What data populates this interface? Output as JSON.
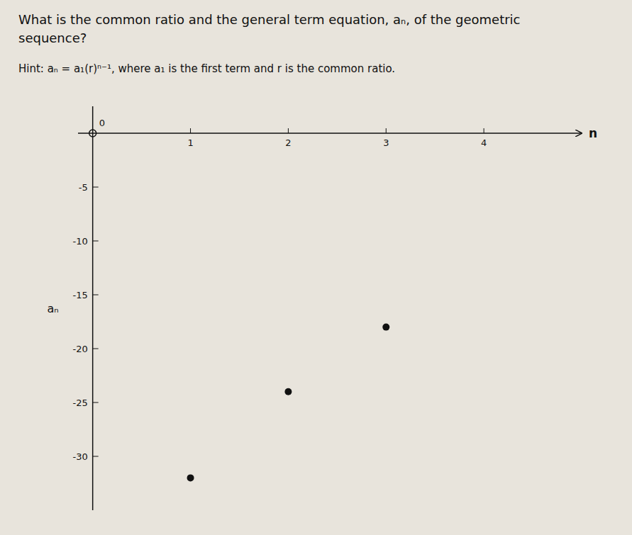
{
  "chart_data": {
    "type": "scatter",
    "title": [
      "What is the common ratio and the general term equation, aₙ, of the geometric",
      "sequence?"
    ],
    "subtitle": "Hint: aₙ = a₁(r)ⁿ⁻¹, where a₁ is the first term and r is the common ratio.",
    "x_label": "n",
    "y_label": "aₙ",
    "series": [
      {
        "x": [
          1,
          2,
          3
        ],
        "values": [
          -32,
          -24,
          -18
        ],
        "color": "#111111",
        "marker": "filled"
      },
      {
        "x": [
          0
        ],
        "values": [
          0
        ],
        "color": "#111111",
        "marker": "open"
      }
    ],
    "annotations": [
      {
        "text": "0",
        "x": 0,
        "y": 0
      }
    ],
    "xlim": [
      -0.15,
      5.0
    ],
    "ylim": [
      -35,
      2.5
    ],
    "xticks": [
      1,
      2,
      3,
      4
    ],
    "yticks": [
      -30,
      -25,
      -20,
      -15,
      -10,
      -5
    ],
    "grid": false
  }
}
